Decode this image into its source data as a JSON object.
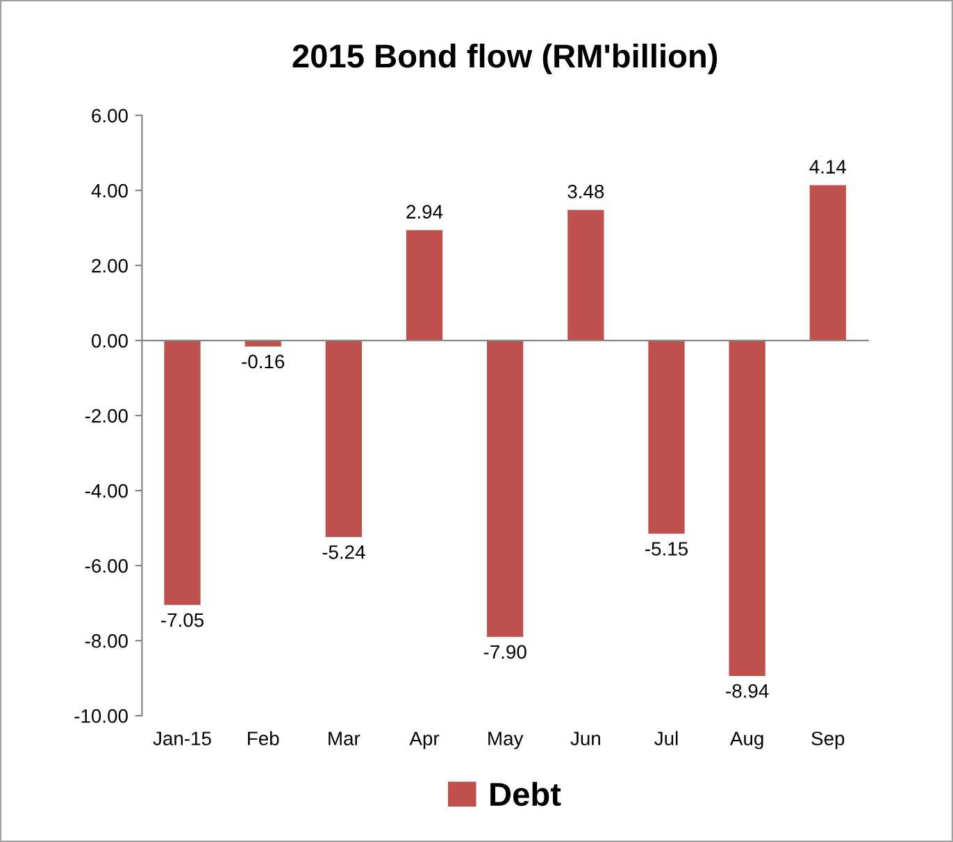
{
  "chart_data": {
    "type": "bar",
    "title": "2015 Bond flow (RM'billion)",
    "categories": [
      "Jan-15",
      "Feb",
      "Mar",
      "Apr",
      "May",
      "Jun",
      "Jul",
      "Aug",
      "Sep"
    ],
    "series": [
      {
        "name": "Debt",
        "color": "#c0504d",
        "values": [
          -7.05,
          -0.16,
          -5.24,
          2.94,
          -7.9,
          3.48,
          -5.15,
          -8.94,
          4.14
        ]
      }
    ],
    "value_labels": [
      "-7.05",
      "-0.16",
      "-5.24",
      "2.94",
      "-7.90",
      "3.48",
      "-5.15",
      "-8.94",
      "4.14"
    ],
    "ylim": [
      -10,
      6
    ],
    "yticks": [
      {
        "value": -10,
        "label": "-10.00"
      },
      {
        "value": -8,
        "label": "-8.00"
      },
      {
        "value": -6,
        "label": "-6.00"
      },
      {
        "value": -4,
        "label": "-4.00"
      },
      {
        "value": -2,
        "label": "-2.00"
      },
      {
        "value": 0,
        "label": "0.00"
      },
      {
        "value": 2,
        "label": "2.00"
      },
      {
        "value": 4,
        "label": "4.00"
      },
      {
        "value": 6,
        "label": "6.00"
      }
    ],
    "legend": "bottom"
  }
}
